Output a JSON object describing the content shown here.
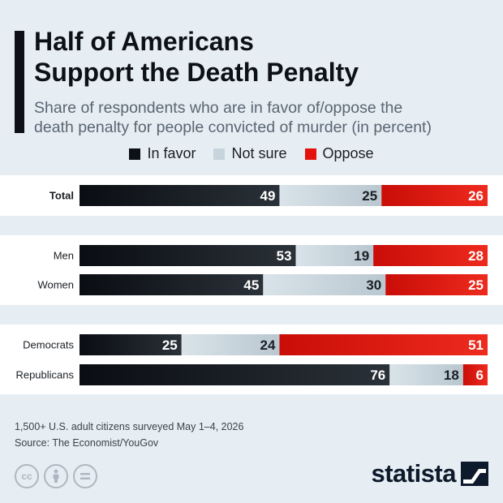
{
  "header": {
    "title_line1": "Half of Americans",
    "title_line2": "Support the Death Penalty",
    "subtitle_line1": "Share of respondents who are in favor of/oppose the",
    "subtitle_line2": "death penalty for people convicted of murder (in percent)"
  },
  "legend": [
    {
      "label": "In favor",
      "color": "#0d1117"
    },
    {
      "label": "Not sure",
      "color": "#c7d4dc"
    },
    {
      "label": "Oppose",
      "color": "#e3120b"
    }
  ],
  "chart_data": {
    "type": "bar",
    "stacked": true,
    "orientation": "horizontal",
    "categories": [
      "Total",
      "Men",
      "Women",
      "Democrats",
      "Republicans"
    ],
    "groups": [
      [
        "Total"
      ],
      [
        "Men",
        "Women"
      ],
      [
        "Democrats",
        "Republicans"
      ]
    ],
    "series": [
      {
        "name": "In favor",
        "values": [
          49,
          53,
          45,
          25,
          76
        ],
        "color": "#0d1117"
      },
      {
        "name": "Not sure",
        "values": [
          25,
          19,
          30,
          24,
          18
        ],
        "color": "#c7d4dc"
      },
      {
        "name": "Oppose",
        "values": [
          26,
          28,
          25,
          51,
          6
        ],
        "color": "#e3120b"
      }
    ],
    "xlim": [
      0,
      100
    ],
    "legend_position": "top"
  },
  "footer": {
    "note": "1,500+ U.S. adult citizens surveyed May 1–4, 2026",
    "source": "Source: The Economist/YouGov",
    "brand": "statista",
    "cc_icons": [
      "cc-icon",
      "by-icon",
      "nd-icon"
    ]
  }
}
